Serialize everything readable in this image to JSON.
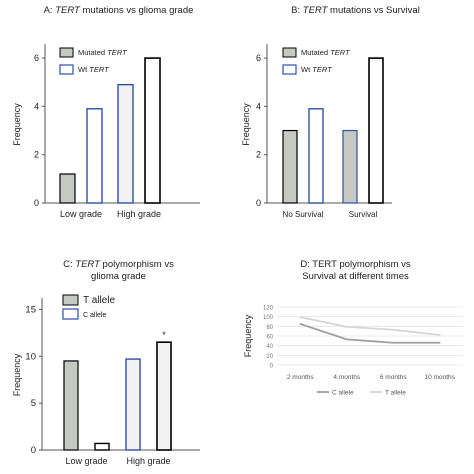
{
  "colors": {
    "mutated_fill": "#c4c9c2",
    "wt_fill": "#ffffff",
    "wt_stroke": "#2f4fa8",
    "highgrade_mut_fill": "#f2f2f2",
    "black": "#000000",
    "line_c": "#9e9e9e",
    "line_t": "#d6d6d6",
    "grid": "#e4e4e4"
  },
  "chart_data": [
    {
      "id": "A",
      "type": "bar",
      "title_prefix": "A: ",
      "title_italic": "TERT",
      "title_suffix": " mutations vs glioma grade",
      "ylabel": "Frequency",
      "yticks": [
        0,
        2,
        4,
        6
      ],
      "ylim": [
        0,
        6.5
      ],
      "categories": [
        "Low grade",
        "High grade"
      ],
      "legend": [
        {
          "prefix": "Mutated ",
          "italic": "TERT",
          "swatch": "mutated"
        },
        {
          "prefix": "Wt ",
          "italic": "TERT",
          "swatch": "wt"
        }
      ],
      "series": [
        {
          "name": "Mutated TERT",
          "values": [
            1.2,
            4.9
          ]
        },
        {
          "name": "Wt TERT",
          "values": [
            3.9,
            6.0
          ]
        }
      ]
    },
    {
      "id": "B",
      "type": "bar",
      "title_prefix": "B: ",
      "title_italic": "TERT",
      "title_suffix": " mutations vs Survival",
      "ylabel": "Frequency",
      "yticks": [
        0,
        2,
        4,
        6
      ],
      "ylim": [
        0,
        6.5
      ],
      "categories": [
        "No Survival",
        "Survival"
      ],
      "legend": [
        {
          "prefix": "Mutated ",
          "italic": "TERT",
          "swatch": "mutated"
        },
        {
          "prefix": "Wt ",
          "italic": "TERT",
          "swatch": "wt"
        }
      ],
      "series": [
        {
          "name": "Mutated TERT",
          "values": [
            3.0,
            3.0
          ]
        },
        {
          "name": "Wt TERT",
          "values": [
            3.9,
            6.0
          ]
        }
      ]
    },
    {
      "id": "C",
      "type": "bar",
      "title_line1_prefix": "C: ",
      "title_line1_italic": "TERT",
      "title_line1_suffix": " polymorphism vs",
      "title_line2": "glioma grade",
      "ylabel": "Frequency",
      "yticks": [
        0,
        5,
        10,
        15
      ],
      "ylim": [
        0,
        16
      ],
      "categories": [
        "Low grade",
        "High grade"
      ],
      "legend": [
        {
          "label": "T allele",
          "swatch": "mutated"
        },
        {
          "label": "C allele",
          "swatch": "wt"
        }
      ],
      "annotation": "*",
      "series": [
        {
          "name": "T allele",
          "values": [
            9.5,
            9.7
          ]
        },
        {
          "name": "C allele",
          "values": [
            0.7,
            11.5
          ]
        }
      ]
    },
    {
      "id": "D",
      "type": "line",
      "title_line1": "D: TERT polymorphism vs",
      "title_line2": "Survival at different times",
      "ylabel": "Frequency",
      "yticks": [
        0,
        20,
        40,
        60,
        80,
        100,
        120
      ],
      "ylim": [
        0,
        120
      ],
      "categories": [
        "2 months",
        "4 months",
        "6 months",
        "10 months"
      ],
      "grid": true,
      "legend_position": "bottom",
      "series": [
        {
          "name": "C allele",
          "values": [
            85,
            53,
            46,
            46
          ]
        },
        {
          "name": "T allele",
          "values": [
            99,
            79,
            73,
            62
          ]
        }
      ]
    }
  ]
}
